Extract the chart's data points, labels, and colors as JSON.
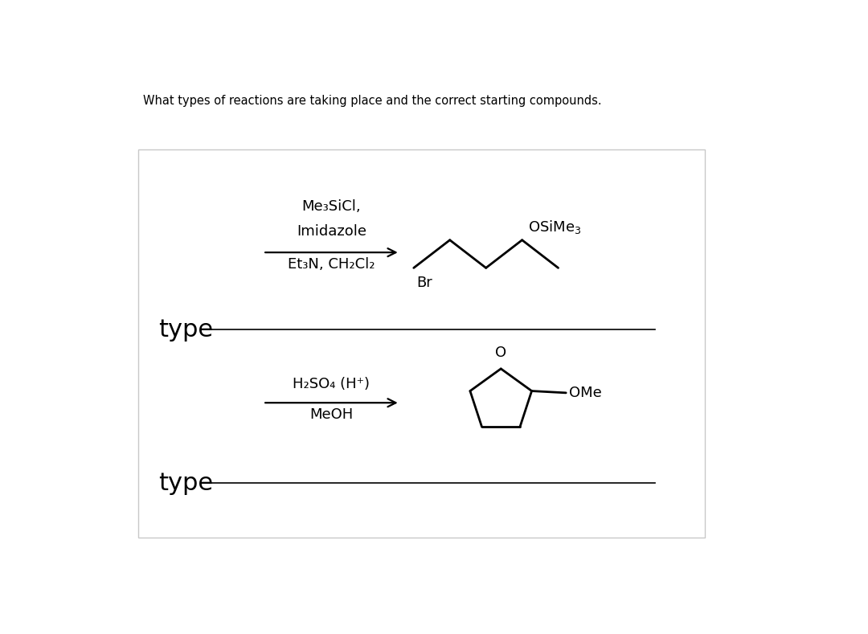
{
  "title_text": "What types of reactions are taking place and the correct starting compounds.",
  "title_fontsize": 10.5,
  "background_color": "#ffffff",
  "box_edge_color": "#c8c8c8",
  "reaction1_above_line1": "Me₃SiCl,",
  "reaction1_above_line2": "Imidazole",
  "reaction1_below": "Et₃N, CH₂Cl₂",
  "reaction2_above": "H₂SO₄ (H⁺)",
  "reaction2_below": "MeOH",
  "type_label": "type",
  "font_size_reagent": 13,
  "font_size_type": 22,
  "font_size_mol_label": 13,
  "arrow_color": "#000000",
  "line_color": "#000000",
  "text_color": "#000000"
}
